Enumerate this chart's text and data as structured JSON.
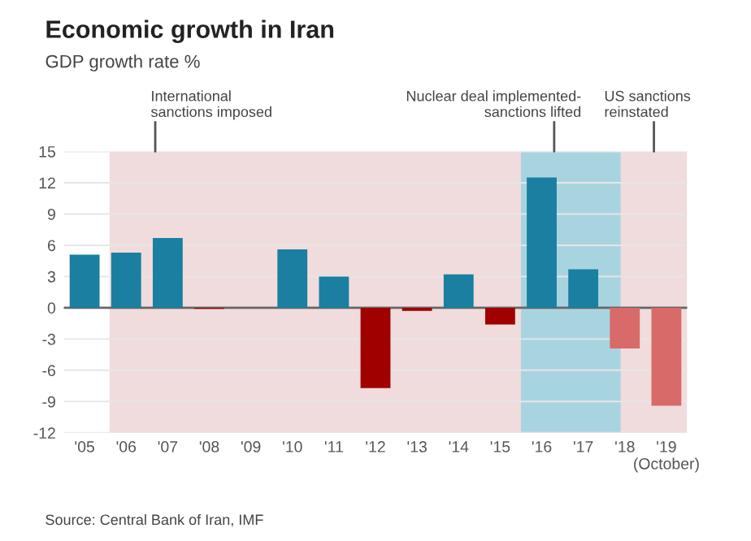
{
  "chart_data": {
    "type": "bar",
    "title": "Economic growth in Iran",
    "subtitle": "GDP growth rate %",
    "x": [
      2005,
      2006,
      2007,
      2008,
      2009,
      2010,
      2011,
      2012,
      2013,
      2014,
      2015,
      2016,
      2017,
      2018,
      2019
    ],
    "values": [
      5.1,
      5.3,
      6.7,
      -0.1,
      0,
      5.6,
      3.0,
      -7.7,
      -0.3,
      3.2,
      -1.6,
      12.5,
      3.7,
      -3.9,
      -9.4
    ],
    "colors": [
      "#1a7fa0",
      "#1a7fa0",
      "#1a7fa0",
      "#a00000",
      "#a00000",
      "#1a7fa0",
      "#1a7fa0",
      "#a00000",
      "#a00000",
      "#1a7fa0",
      "#a00000",
      "#1a7fa0",
      "#1a7fa0",
      "#d86a6a",
      "#d86a6a"
    ],
    "xlim": [
      2004.5,
      2019.5
    ],
    "xticks": [
      {
        "value": 2005,
        "label": "'05"
      },
      {
        "value": 2006,
        "label": "'06"
      },
      {
        "value": 2007,
        "label": "'07"
      },
      {
        "value": 2008,
        "label": "'08"
      },
      {
        "value": 2009,
        "label": "'09"
      },
      {
        "value": 2010,
        "label": "'10"
      },
      {
        "value": 2011,
        "label": "'11"
      },
      {
        "value": 2012,
        "label": "'12"
      },
      {
        "value": 2013,
        "label": "'13"
      },
      {
        "value": 2014,
        "label": "'14"
      },
      {
        "value": 2015,
        "label": "'15"
      },
      {
        "value": 2016,
        "label": "'16"
      },
      {
        "value": 2017,
        "label": "'17"
      },
      {
        "value": 2018,
        "label": "'18"
      },
      {
        "value": 2019,
        "label": "'19\n(October)"
      }
    ],
    "ylim": [
      -12,
      15
    ],
    "yticks": [
      -12,
      -9,
      -6,
      -3,
      0,
      3,
      6,
      9,
      12,
      15
    ],
    "grid": "y",
    "bands": [
      {
        "axis": "x",
        "from": 2005.6,
        "to": 2019.5,
        "color": "#f0dcdc"
      },
      {
        "axis": "x",
        "from": 2015.5,
        "to": 2017.9,
        "color": "#a8d4e0"
      }
    ],
    "annotations": [
      {
        "text": "International\nsanctions imposed",
        "x": 2006.7,
        "y": 15
      },
      {
        "text": "Nuclear deal implemented-\nsanctions lifted",
        "x": 2016.3,
        "y": 15
      },
      {
        "text": "US sanctions\nreinstated",
        "x": 2018.7,
        "y": 15
      },
      "Source: Central Bank of Iran, IMF"
    ]
  }
}
